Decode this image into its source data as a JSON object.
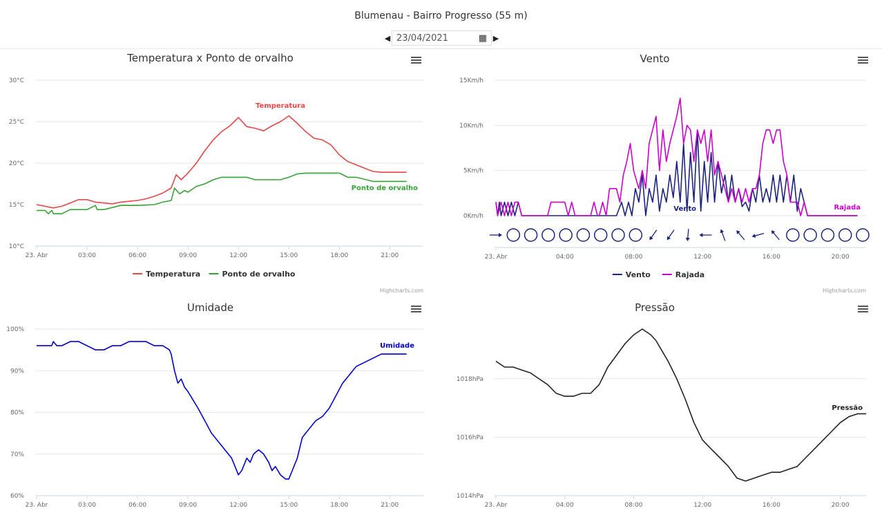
{
  "header": {
    "title": "Blumenau - Bairro Progresso (55 m)",
    "date": "23/04/2021"
  },
  "icons": {
    "prev": "caret-left-icon",
    "next": "caret-right-icon",
    "calendar": "calendar-icon",
    "menu": "hamburger-menu-icon"
  },
  "colors": {
    "temperatura": "#e34747",
    "ponto_orvalho": "#36a336",
    "umidade": "#0000cc",
    "vento": "#1a237e",
    "rajada": "#cc00cc",
    "pressao": "#222222",
    "grid": "#e6e6e6",
    "axis": "#ccd6eb"
  },
  "credits": "Highcharts.com",
  "chart_data": [
    {
      "id": "temp",
      "type": "line",
      "title": "Temperatura x Ponto de orvalho",
      "x_ticks": [
        "23. Abr",
        "03:00",
        "06:00",
        "09:00",
        "12:00",
        "15:00",
        "18:00",
        "21:00"
      ],
      "x_range": [
        0,
        23
      ],
      "y_ticks": [
        "10°C",
        "15°C",
        "20°C",
        "25°C",
        "30°C"
      ],
      "ylim": [
        10,
        30
      ],
      "legend": "bottom-center",
      "series": [
        {
          "name": "Temperatura",
          "color_key": "temperatura",
          "label": "Temperatura",
          "x": [
            0,
            0.5,
            1,
            1.5,
            2,
            2.5,
            3,
            3.5,
            4,
            4.5,
            5,
            5.5,
            6,
            6.5,
            7,
            7.5,
            8,
            8.3,
            8.6,
            9,
            9.5,
            10,
            10.5,
            11,
            11.5,
            12,
            12.5,
            13,
            13.5,
            14,
            14.5,
            15,
            15.5,
            16,
            16.5,
            17,
            17.5,
            18,
            18.5,
            19,
            19.5,
            20,
            20.5,
            21,
            21.5,
            22
          ],
          "values": [
            15.0,
            14.8,
            14.6,
            14.8,
            15.2,
            15.6,
            15.6,
            15.3,
            15.2,
            15.1,
            15.3,
            15.4,
            15.5,
            15.7,
            16.0,
            16.4,
            17.0,
            18.6,
            18.0,
            18.8,
            20.0,
            21.5,
            22.8,
            23.8,
            24.5,
            25.5,
            24.4,
            24.2,
            23.9,
            24.5,
            25.0,
            25.7,
            24.8,
            23.8,
            23.0,
            22.8,
            22.2,
            21.0,
            20.2,
            19.8,
            19.4,
            19.0,
            18.9,
            18.9,
            18.9,
            18.9
          ]
        },
        {
          "name": "Ponto de orvalho",
          "color_key": "ponto_orvalho",
          "label": "Ponto de orvalho",
          "x": [
            0,
            0.5,
            0.7,
            0.9,
            1,
            1.5,
            2,
            2.5,
            3,
            3.5,
            3.6,
            3.8,
            4,
            5,
            6,
            7,
            7.5,
            8,
            8.2,
            8.5,
            8.8,
            9,
            9.5,
            10,
            10.5,
            11,
            11.5,
            12,
            12.5,
            13,
            13.5,
            14,
            14.5,
            15,
            15.5,
            16,
            17,
            18,
            18.5,
            19,
            20,
            21,
            22
          ],
          "values": [
            14.3,
            14.3,
            13.9,
            14.3,
            13.9,
            13.9,
            14.4,
            14.4,
            14.4,
            14.9,
            14.4,
            14.4,
            14.4,
            14.9,
            14.9,
            15.0,
            15.3,
            15.5,
            17.0,
            16.3,
            16.7,
            16.5,
            17.2,
            17.5,
            18.0,
            18.3,
            18.3,
            18.3,
            18.3,
            18.0,
            18.0,
            18.0,
            18.0,
            18.3,
            18.7,
            18.8,
            18.8,
            18.8,
            18.3,
            18.3,
            17.8,
            17.8,
            17.8
          ]
        }
      ]
    },
    {
      "id": "vento",
      "type": "line",
      "title": "Vento",
      "x_ticks": [
        "23. Abr",
        "04:00",
        "08:00",
        "12:00",
        "16:00",
        "20:00"
      ],
      "x_range": [
        0,
        21.5
      ],
      "y_ticks": [
        "0Km/h",
        "5Km/h",
        "10Km/h",
        "15Km/h"
      ],
      "ylim": [
        0,
        15
      ],
      "legend": "bottom-center",
      "series": [
        {
          "name": "Vento",
          "color_key": "vento",
          "label": "Vento",
          "x": [
            0,
            0.1,
            0.2,
            0.3,
            0.5,
            0.7,
            0.9,
            1.1,
            1.3,
            1.5,
            2,
            3,
            4,
            5,
            6,
            7,
            7.3,
            7.5,
            7.7,
            7.9,
            8.1,
            8.3,
            8.5,
            8.7,
            8.9,
            9.1,
            9.3,
            9.5,
            9.7,
            9.9,
            10.1,
            10.3,
            10.5,
            10.7,
            10.9,
            11.1,
            11.3,
            11.5,
            11.7,
            11.9,
            12.1,
            12.3,
            12.5,
            12.7,
            12.9,
            13.1,
            13.3,
            13.5,
            13.7,
            13.9,
            14.1,
            14.3,
            14.5,
            14.7,
            14.9,
            15.1,
            15.3,
            15.5,
            15.7,
            15.9,
            16.1,
            16.3,
            16.5,
            16.7,
            16.9,
            17.1,
            17.3,
            17.5,
            17.7,
            17.9,
            18.1,
            18.3,
            19,
            20,
            21
          ],
          "values": [
            1.5,
            0,
            1.5,
            0,
            1.5,
            0,
            1.5,
            0,
            1.5,
            0,
            0,
            0,
            0,
            0,
            0,
            0,
            1.5,
            0,
            1.5,
            0,
            3,
            1.5,
            4.5,
            0,
            3,
            1.5,
            4.5,
            0.5,
            3,
            1.5,
            4.5,
            2,
            6,
            1.5,
            8,
            0.5,
            7,
            1.5,
            9.5,
            0.5,
            6,
            1.5,
            7,
            1.5,
            6,
            2.5,
            4.5,
            1.5,
            4.5,
            1.5,
            3,
            1,
            1.5,
            0.5,
            3,
            1.5,
            4.5,
            1.5,
            3,
            1.5,
            4.5,
            1.5,
            4.5,
            1.5,
            4.5,
            1.5,
            4.5,
            0.5,
            3,
            1.5,
            0,
            0,
            0,
            0,
            0
          ]
        },
        {
          "name": "Rajada",
          "color_key": "rajada",
          "label": "Rajada",
          "x": [
            0,
            0.1,
            0.3,
            0.5,
            0.7,
            0.9,
            1.1,
            1.3,
            1.5,
            1.7,
            2,
            3,
            3.2,
            3.4,
            3.6,
            3.8,
            4,
            4.2,
            4.4,
            4.6,
            5,
            5.5,
            5.7,
            5.9,
            6,
            6.2,
            6.4,
            6.6,
            6.8,
            7,
            7.2,
            7.4,
            7.6,
            7.8,
            8,
            8.3,
            8.5,
            8.7,
            8.9,
            9.1,
            9.3,
            9.5,
            9.7,
            9.9,
            10.1,
            10.3,
            10.5,
            10.7,
            10.9,
            11.1,
            11.3,
            11.5,
            11.7,
            11.9,
            12.1,
            12.3,
            12.5,
            12.7,
            12.9,
            13.1,
            13.3,
            13.5,
            13.7,
            13.9,
            14.1,
            14.3,
            14.5,
            14.7,
            14.9,
            15.1,
            15.3,
            15.5,
            15.7,
            15.9,
            16.1,
            16.3,
            16.5,
            16.7,
            16.9,
            17.1,
            17.3,
            17.5,
            17.7,
            17.9,
            18.1,
            18.3,
            18.5,
            19,
            19.5,
            20,
            21
          ],
          "values": [
            1.5,
            0,
            1.5,
            0,
            1.5,
            0,
            1.5,
            1.5,
            0,
            0,
            0,
            0,
            1.5,
            1.5,
            1.5,
            1.5,
            1.5,
            0,
            1.5,
            0,
            0,
            0,
            1.5,
            0,
            0,
            1.5,
            0,
            3,
            3,
            3,
            1.5,
            4.5,
            6,
            8,
            5,
            3,
            5,
            3,
            8,
            9.5,
            11,
            5,
            9.5,
            6,
            8,
            9.5,
            11,
            13,
            8,
            10,
            9.5,
            6,
            9.5,
            8,
            9.5,
            6,
            9.5,
            4.5,
            6,
            4.5,
            3,
            1.5,
            3,
            1.5,
            3,
            1.5,
            3,
            1.5,
            3,
            3,
            4.5,
            8,
            9.5,
            9.5,
            8,
            9.5,
            9.5,
            6,
            4.5,
            1.5,
            1.5,
            1.5,
            0,
            1.5,
            0,
            0,
            0,
            0,
            0,
            0,
            0
          ]
        }
      ],
      "direction_row": [
        "arrow-E",
        "calm",
        "calm",
        "calm",
        "calm",
        "calm",
        "calm",
        "calm",
        "calm",
        "arrow-SW",
        "arrow-SW",
        "arrow-S",
        "arrow-W",
        "arrow-NNW",
        "arrow-NW",
        "arrow-WSW",
        "arrow-NW",
        "calm",
        "calm",
        "calm",
        "calm",
        "calm"
      ]
    },
    {
      "id": "umidade",
      "type": "line",
      "title": "Umidade",
      "x_ticks": [
        "23. Abr",
        "03:00",
        "06:00",
        "09:00",
        "12:00",
        "15:00",
        "18:00",
        "21:00"
      ],
      "x_range": [
        0,
        23
      ],
      "y_ticks": [
        "60%",
        "70%",
        "80%",
        "90%",
        "100%"
      ],
      "ylim": [
        60,
        100
      ],
      "legend": "none",
      "series": [
        {
          "name": "Umidade",
          "color_key": "umidade",
          "label": "Umidade",
          "x": [
            0,
            0.5,
            0.9,
            1,
            1.2,
            1.5,
            2,
            2.5,
            3,
            3.5,
            4,
            4.5,
            5,
            5.5,
            6,
            6.5,
            7,
            7.5,
            7.9,
            8,
            8.2,
            8.4,
            8.6,
            8.8,
            9,
            9.3,
            9.6,
            10,
            10.4,
            10.8,
            11.2,
            11.6,
            12,
            12.2,
            12.5,
            12.7,
            12.9,
            13.2,
            13.5,
            13.8,
            14,
            14.2,
            14.5,
            14.8,
            15,
            15.2,
            15.5,
            15.8,
            16.2,
            16.6,
            17,
            17.4,
            17.8,
            18.2,
            18.6,
            19,
            19.5,
            20,
            20.5,
            21,
            21.5,
            22
          ],
          "values": [
            96,
            96,
            96,
            97,
            96,
            96,
            97,
            97,
            96,
            95,
            95,
            96,
            96,
            97,
            97,
            97,
            96,
            96,
            95,
            94,
            90,
            87,
            88,
            86,
            85,
            83,
            81,
            78,
            75,
            73,
            71,
            69,
            65,
            66,
            69,
            68,
            70,
            71,
            70,
            68,
            66,
            67,
            65,
            64,
            64,
            66,
            69,
            74,
            76,
            78,
            79,
            81,
            84,
            87,
            89,
            91,
            92,
            93,
            94,
            94,
            94,
            94
          ]
        }
      ]
    },
    {
      "id": "pressao",
      "type": "line",
      "title": "Pressão",
      "x_ticks": [
        "23. Abr",
        "04:00",
        "08:00",
        "12:00",
        "16:00",
        "20:00"
      ],
      "x_range": [
        0,
        21.5
      ],
      "y_ticks": [
        "1014hPa",
        "1016hPa",
        "1018hPa"
      ],
      "ylim": [
        1014,
        1019.7
      ],
      "legend": "none",
      "series": [
        {
          "name": "Pressão",
          "color_key": "pressao",
          "label": "Pressão",
          "x": [
            0,
            0.5,
            1,
            1.5,
            2,
            2.5,
            3,
            3.5,
            4,
            4.5,
            5,
            5.5,
            6,
            6.5,
            7,
            7.5,
            8,
            8.5,
            9,
            9.3,
            9.7,
            10,
            10.5,
            11,
            11.5,
            12,
            12.5,
            13,
            13.5,
            14,
            14.5,
            15,
            15.5,
            16,
            16.5,
            17,
            17.5,
            18,
            18.5,
            19,
            19.5,
            20,
            20.5,
            21,
            21.5
          ],
          "values": [
            1018.6,
            1018.4,
            1018.4,
            1018.3,
            1018.2,
            1018.0,
            1017.8,
            1017.5,
            1017.4,
            1017.4,
            1017.5,
            1017.5,
            1017.8,
            1018.4,
            1018.8,
            1019.2,
            1019.5,
            1019.7,
            1019.5,
            1019.3,
            1018.9,
            1018.6,
            1018.0,
            1017.3,
            1016.5,
            1015.9,
            1015.6,
            1015.3,
            1015.0,
            1014.6,
            1014.5,
            1014.6,
            1014.7,
            1014.8,
            1014.8,
            1014.9,
            1015.0,
            1015.3,
            1015.6,
            1015.9,
            1016.2,
            1016.5,
            1016.7,
            1016.8,
            1016.8
          ]
        }
      ]
    }
  ]
}
